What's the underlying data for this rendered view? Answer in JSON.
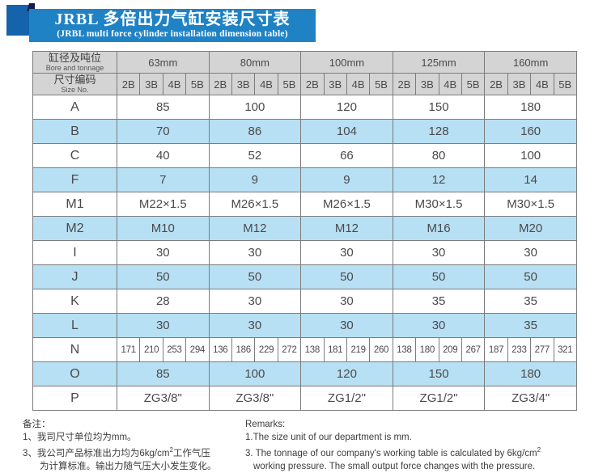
{
  "title": {
    "zh": "JRBL 多倍出力气缸安装尺寸表",
    "en": "(JRBL multi force cylinder installation dimension table)"
  },
  "table": {
    "corner": {
      "zh": "缸径及吨位",
      "en": "Bore and tonnage"
    },
    "size_no": {
      "zh": "尺寸编码",
      "en": "Size No."
    },
    "bores": [
      "63mm",
      "80mm",
      "100mm",
      "125mm",
      "160mm"
    ],
    "codes": [
      "2B",
      "3B",
      "4B",
      "5B"
    ],
    "rows": [
      {
        "label": "A",
        "type": "span",
        "values": [
          "85",
          "100",
          "120",
          "150",
          "180"
        ]
      },
      {
        "label": "B",
        "type": "span",
        "values": [
          "70",
          "86",
          "104",
          "128",
          "160"
        ]
      },
      {
        "label": "C",
        "type": "span",
        "values": [
          "40",
          "52",
          "66",
          "80",
          "100"
        ]
      },
      {
        "label": "F",
        "type": "span",
        "values": [
          "7",
          "9",
          "9",
          "12",
          "14"
        ]
      },
      {
        "label": "M1",
        "type": "span",
        "values": [
          "M22×1.5",
          "M26×1.5",
          "M26×1.5",
          "M30×1.5",
          "M30×1.5"
        ]
      },
      {
        "label": "M2",
        "type": "span",
        "values": [
          "M10",
          "M12",
          "M12",
          "M16",
          "M20"
        ]
      },
      {
        "label": "I",
        "type": "span",
        "values": [
          "30",
          "30",
          "30",
          "30",
          "30"
        ]
      },
      {
        "label": "J",
        "type": "span",
        "values": [
          "50",
          "50",
          "50",
          "50",
          "50"
        ]
      },
      {
        "label": "K",
        "type": "span",
        "values": [
          "28",
          "30",
          "30",
          "35",
          "35"
        ]
      },
      {
        "label": "L",
        "type": "span",
        "values": [
          "30",
          "30",
          "30",
          "30",
          "35"
        ]
      },
      {
        "label": "N",
        "type": "each",
        "values": [
          "171",
          "210",
          "253",
          "294",
          "136",
          "186",
          "229",
          "272",
          "138",
          "181",
          "219",
          "260",
          "138",
          "180",
          "209",
          "267",
          "187",
          "233",
          "277",
          "321"
        ]
      },
      {
        "label": "O",
        "type": "span",
        "values": [
          "85",
          "100",
          "120",
          "150",
          "180"
        ]
      },
      {
        "label": "P",
        "type": "span",
        "values": [
          "ZG3/8\"",
          "ZG3/8\"",
          "ZG1/2\"",
          "ZG1/2\"",
          "ZG3/4\""
        ]
      }
    ]
  },
  "notes_zh": {
    "heading": "备注：",
    "line1": "1、我司尺寸单位均为mm。",
    "line2_pre": "3、我公司产品标准出力均为6kg/cm",
    "line2_sup": "2",
    "line2_post": "工作气压",
    "line3": "为计算标准。输出力随气压大小发生变化。"
  },
  "notes_en": {
    "heading": "Remarks:",
    "line1": "1.The size unit of our department is mm.",
    "line2_pre": "3. The tonnage of our company's working table is calculated by 6kg/cm",
    "line2_sup": "2",
    "line3": "working pressure. The small output force changes with the pressure."
  },
  "colors": {
    "banner_blue": "#1f82c5",
    "banner_square": "#1563ab",
    "banner_corner": "#131c4f",
    "header_gray": "#d4d4d4",
    "row_blue": "#b8e0f4",
    "border": "#7c7c7c"
  }
}
